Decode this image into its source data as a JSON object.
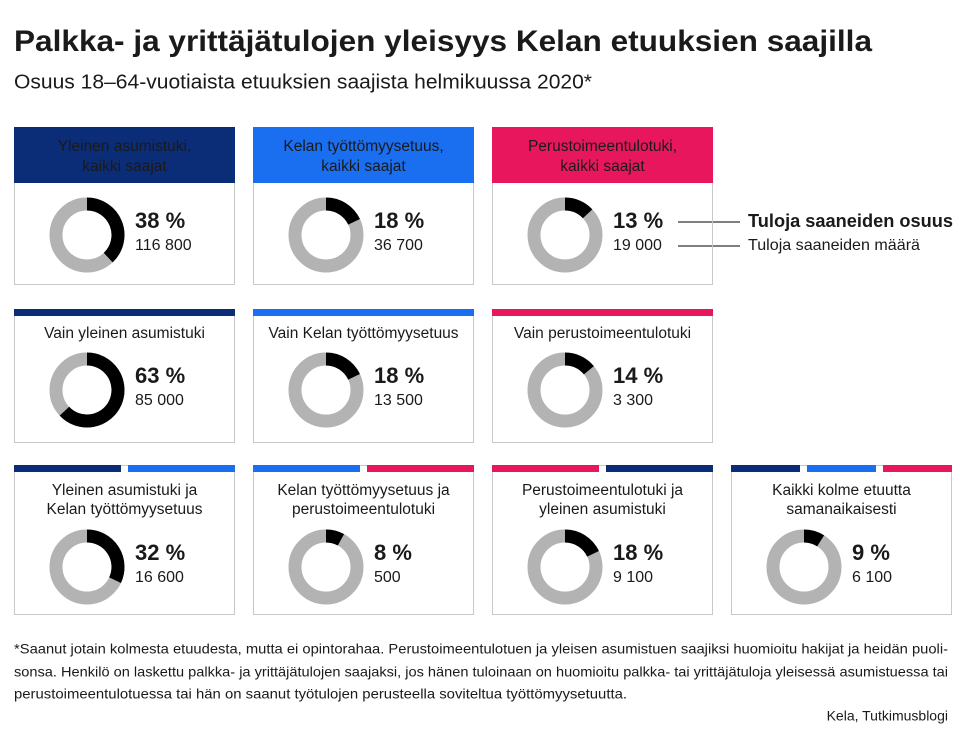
{
  "title": "Palkka- ja yrittäjätulojen yleisyys Kelan etuuksien saajilla",
  "subtitle": "Osuus 18–64-vuotiaista etuuksien saajista helmikuussa 2020*",
  "legend": [
    "Tuloja saaneiden osuus",
    "Tuloja saaneiden määrä"
  ],
  "footnote": [
    "*Saanut jotain kolmesta etuudesta, mutta ei opintorahaa. Perustoimeentulotuen ja yleisen asumistuen saajiksi huomioitu hakijat ja heidän puoli-",
    "sonsa. Henkilö on laskettu palkka- ja yrittäjätulojen saajaksi, jos hänen tuloinaan on huomioitu palkka- tai yrittäjätuloja yleisessä asumistuessa tai",
    "perustoimeentulotuessa tai hän on saanut työtulojen perusteella soviteltua työttömyysetuutta."
  ],
  "source": "Kela, Tutkimusblogi",
  "chart_data": [
    {
      "type": "donut",
      "title": [
        "Yleinen asumistuki,",
        "kaikki saajat"
      ],
      "values": [
        38
      ],
      "value_labels": [
        "38 %"
      ],
      "count": 116800,
      "count_label": "116 800",
      "header": "filled",
      "colors": [
        "#0b2d78"
      ]
    },
    {
      "type": "donut",
      "title": [
        "Kelan työttömyysetuus,",
        "kaikki saajat"
      ],
      "values": [
        18
      ],
      "value_labels": [
        "18 %"
      ],
      "count": 36700,
      "count_label": "36 700",
      "header": "filled",
      "colors": [
        "#1a6ef0"
      ]
    },
    {
      "type": "donut",
      "title": [
        "Perustoimeentulotuki,",
        "kaikki saajat"
      ],
      "values": [
        13
      ],
      "value_labels": [
        "13 %"
      ],
      "count": 19000,
      "count_label": "19 000",
      "header": "filled",
      "colors": [
        "#e8175d"
      ]
    },
    {
      "type": "donut",
      "title": [
        "Vain yleinen asumistuki"
      ],
      "values": [
        63
      ],
      "value_labels": [
        "63 %"
      ],
      "count": 85000,
      "count_label": "85 000",
      "header": "bar",
      "colors": [
        "#0b2d78"
      ]
    },
    {
      "type": "donut",
      "title": [
        "Vain Kelan työttömyysetuus"
      ],
      "values": [
        18
      ],
      "value_labels": [
        "18 %"
      ],
      "count": 13500,
      "count_label": "13 500",
      "header": "bar",
      "colors": [
        "#1a6ef0"
      ]
    },
    {
      "type": "donut",
      "title": [
        "Vain perustoimeentulotuki"
      ],
      "values": [
        14
      ],
      "value_labels": [
        "14 %"
      ],
      "count": 3300,
      "count_label": "3 300",
      "header": "bar",
      "colors": [
        "#e8175d"
      ]
    },
    {
      "type": "donut",
      "title": [
        "Yleinen asumistuki ja",
        "Kelan työttömyysetuus"
      ],
      "values": [
        32
      ],
      "value_labels": [
        "32 %"
      ],
      "count": 16600,
      "count_label": "16 600",
      "header": "bar",
      "colors": [
        "#0b2d78",
        "#1a6ef0"
      ]
    },
    {
      "type": "donut",
      "title": [
        "Kelan työttömyysetuus ja",
        "perustoimeentulotuki"
      ],
      "values": [
        8
      ],
      "value_labels": [
        "8 %"
      ],
      "count": 500,
      "count_label": "500",
      "header": "bar",
      "colors": [
        "#1a6ef0",
        "#e8175d"
      ]
    },
    {
      "type": "donut",
      "title": [
        "Perustoimeentulotuki ja",
        "yleinen asumistuki"
      ],
      "values": [
        18
      ],
      "value_labels": [
        "18 %"
      ],
      "count": 9100,
      "count_label": "9 100",
      "header": "bar",
      "colors": [
        "#e8175d",
        "#0b2d78"
      ]
    },
    {
      "type": "donut",
      "title": [
        "Kaikki kolme etuutta",
        "samanaikaisesti"
      ],
      "values": [
        9
      ],
      "value_labels": [
        "9 %"
      ],
      "count": 6100,
      "count_label": "6 100",
      "header": "bar",
      "colors": [
        "#0b2d78",
        "#1a6ef0",
        "#e8175d"
      ]
    }
  ]
}
